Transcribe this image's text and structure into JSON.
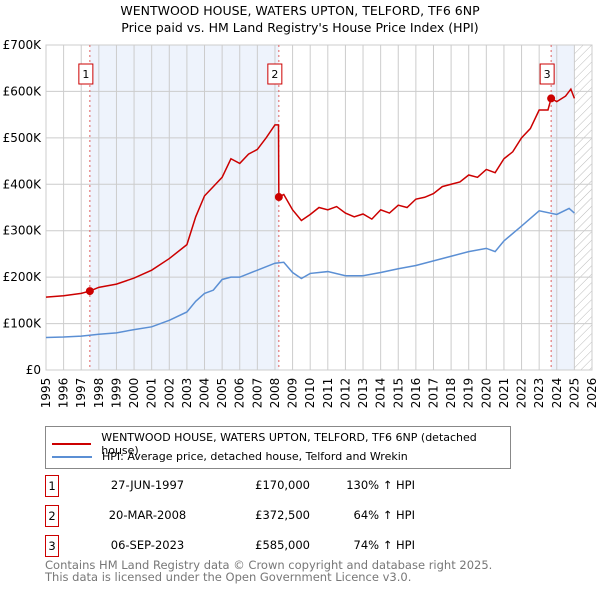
{
  "title": "WENTWOOD HOUSE, WATERS UPTON, TELFORD, TF6 6NP",
  "subtitle": "Price paid vs. HM Land Registry's House Price Index (HPI)",
  "chart_data": {
    "type": "line",
    "title": "WENTWOOD HOUSE, WATERS UPTON, TELFORD, TF6 6NP",
    "subtitle": "Price paid vs. HM Land Registry's House Price Index (HPI)",
    "xlim": [
      1995,
      2026
    ],
    "ylim": [
      0,
      700000
    ],
    "x_ticks": [
      "1995",
      "1996",
      "1997",
      "1998",
      "1999",
      "2000",
      "2001",
      "2002",
      "2003",
      "2004",
      "2005",
      "2006",
      "2007",
      "2008",
      "2009",
      "2010",
      "2011",
      "2012",
      "2013",
      "2014",
      "2015",
      "2016",
      "2017",
      "2018",
      "2019",
      "2020",
      "2021",
      "2022",
      "2023",
      "2024",
      "2025",
      "2026"
    ],
    "y_ticks": [
      {
        "v": 0,
        "l": "£0"
      },
      {
        "v": 100000,
        "l": "£100K"
      },
      {
        "v": 200000,
        "l": "£200K"
      },
      {
        "v": 300000,
        "l": "£300K"
      },
      {
        "v": 400000,
        "l": "£400K"
      },
      {
        "v": 500000,
        "l": "£500K"
      },
      {
        "v": 600000,
        "l": "£600K"
      },
      {
        "v": 700000,
        "l": "£700K"
      }
    ],
    "grid": true,
    "series": [
      {
        "name": "WENTWOOD HOUSE, WATERS UPTON, TELFORD, TF6 6NP (detached house)",
        "color": "#cc0000",
        "x": [
          1995,
          1996,
          1997,
          1997.49,
          1998,
          1999,
          2000,
          2001,
          2002,
          2003,
          2003.5,
          2004,
          2004.5,
          2005,
          2005.5,
          2006,
          2006.5,
          2007,
          2007.5,
          2008,
          2008.2,
          2008.22,
          2008.5,
          2009,
          2009.5,
          2010,
          2010.5,
          2011,
          2011.5,
          2012,
          2012.5,
          2013,
          2013.5,
          2014,
          2014.5,
          2015,
          2015.5,
          2016,
          2016.5,
          2017,
          2017.5,
          2018,
          2018.5,
          2019,
          2019.5,
          2020,
          2020.5,
          2021,
          2021.5,
          2022,
          2022.5,
          2023,
          2023.5,
          2023.68,
          2024,
          2024.5,
          2024.8,
          2025
        ],
        "y": [
          157000,
          160000,
          165000,
          170000,
          178000,
          185000,
          198000,
          215000,
          240000,
          270000,
          330000,
          375000,
          395000,
          415000,
          455000,
          445000,
          465000,
          475000,
          500000,
          528000,
          528000,
          372500,
          378000,
          345000,
          322000,
          335000,
          350000,
          345000,
          352000,
          338000,
          330000,
          336000,
          325000,
          345000,
          338000,
          355000,
          350000,
          368000,
          372000,
          380000,
          395000,
          400000,
          405000,
          420000,
          415000,
          432000,
          425000,
          455000,
          470000,
          500000,
          520000,
          560000,
          560000,
          585000,
          578000,
          590000,
          605000,
          585000
        ]
      },
      {
        "name": "HPI: Average price, detached house, Telford and Wrekin",
        "color": "#5b8fd4",
        "x": [
          1995,
          1996,
          1997,
          1998,
          1999,
          2000,
          2001,
          2002,
          2003,
          2003.5,
          2004,
          2004.5,
          2005,
          2005.5,
          2006,
          2007,
          2008,
          2008.5,
          2009,
          2009.5,
          2010,
          2011,
          2012,
          2013,
          2014,
          2015,
          2016,
          2017,
          2018,
          2019,
          2020,
          2020.5,
          2021,
          2022,
          2023,
          2024,
          2024.7,
          2025
        ],
        "y": [
          70000,
          71000,
          73000,
          77000,
          80000,
          87000,
          93000,
          107000,
          125000,
          148000,
          165000,
          172000,
          195000,
          200000,
          200000,
          215000,
          230000,
          232000,
          210000,
          197000,
          208000,
          212000,
          203000,
          203000,
          210000,
          218000,
          225000,
          235000,
          245000,
          255000,
          262000,
          255000,
          278000,
          310000,
          343000,
          335000,
          348000,
          338000
        ]
      }
    ],
    "sales": [
      {
        "label": "1",
        "x": 1997.49,
        "y": 170000,
        "date": "27-JUN-1997",
        "price": "£170,000",
        "hpi": "130% ↑ HPI"
      },
      {
        "label": "2",
        "x": 2008.22,
        "y": 372500,
        "date": "20-MAR-2008",
        "price": "£372,500",
        "hpi": "64% ↑ HPI"
      },
      {
        "label": "3",
        "x": 2023.68,
        "y": 585000,
        "date": "06-SEP-2023",
        "price": "£585,000",
        "hpi": "74% ↑ HPI"
      }
    ],
    "shaded_ranges": [
      [
        1997.49,
        2008.22
      ],
      [
        2023.68,
        2025.0
      ]
    ],
    "hatched_range": [
      2025.0,
      2026
    ]
  },
  "footer": [
    "Contains HM Land Registry data © Crown copyright and database right 2025.",
    "This data is licensed under the Open Government Licence v3.0."
  ]
}
